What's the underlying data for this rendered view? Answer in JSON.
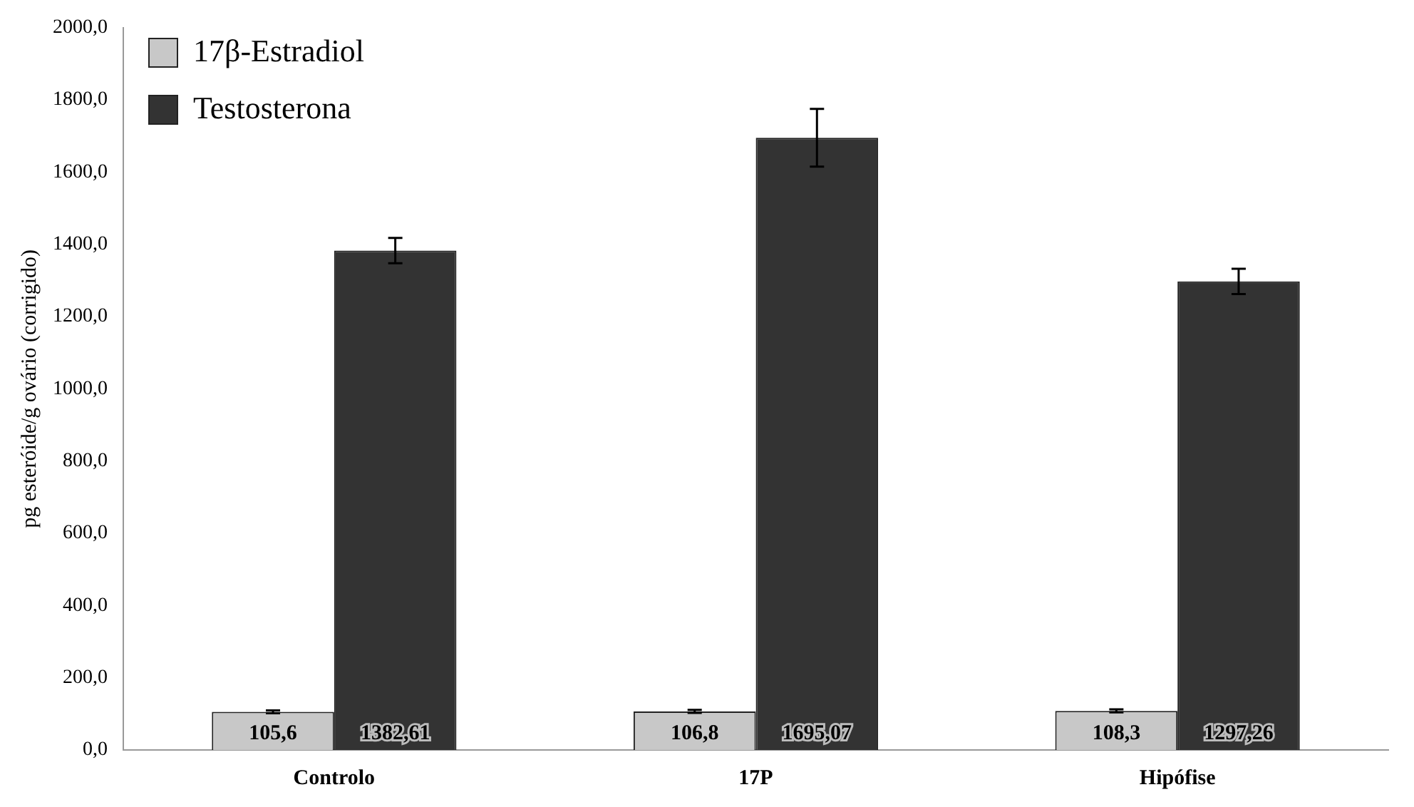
{
  "chart_data": {
    "type": "bar",
    "ylabel": "pg esteróide/g ovário (corrigido)",
    "categories": [
      "Controlo",
      "17P",
      "Hipófise"
    ],
    "series": [
      {
        "name": "17β-Estradiol",
        "color": "#c8c8c8",
        "values": [
          105.6,
          106.8,
          108.3
        ],
        "errors": [
          4,
          4,
          4
        ],
        "value_labels": [
          "105,6",
          "106,8",
          "108,3"
        ]
      },
      {
        "name": "Testosterona",
        "color": "#333333",
        "values": [
          1382.61,
          1695.07,
          1297.26
        ],
        "errors": [
          35,
          80,
          35
        ],
        "value_labels": [
          "1382,61",
          "1695,07",
          "1297,26"
        ]
      }
    ],
    "ylim": [
      0,
      2000
    ],
    "yticks": [
      {
        "value": 0,
        "label": "0,0"
      },
      {
        "value": 200,
        "label": "200,0"
      },
      {
        "value": 400,
        "label": "400,0"
      },
      {
        "value": 600,
        "label": "600,0"
      },
      {
        "value": 800,
        "label": "800,0"
      },
      {
        "value": 1000,
        "label": "1000,0"
      },
      {
        "value": 1200,
        "label": "1200,0"
      },
      {
        "value": 1400,
        "label": "1400,0"
      },
      {
        "value": 1600,
        "label": "1600,0"
      },
      {
        "value": 1800,
        "label": "1800,0"
      },
      {
        "value": 2000,
        "label": "2000,0"
      }
    ],
    "grid": false,
    "legend": "top left"
  }
}
